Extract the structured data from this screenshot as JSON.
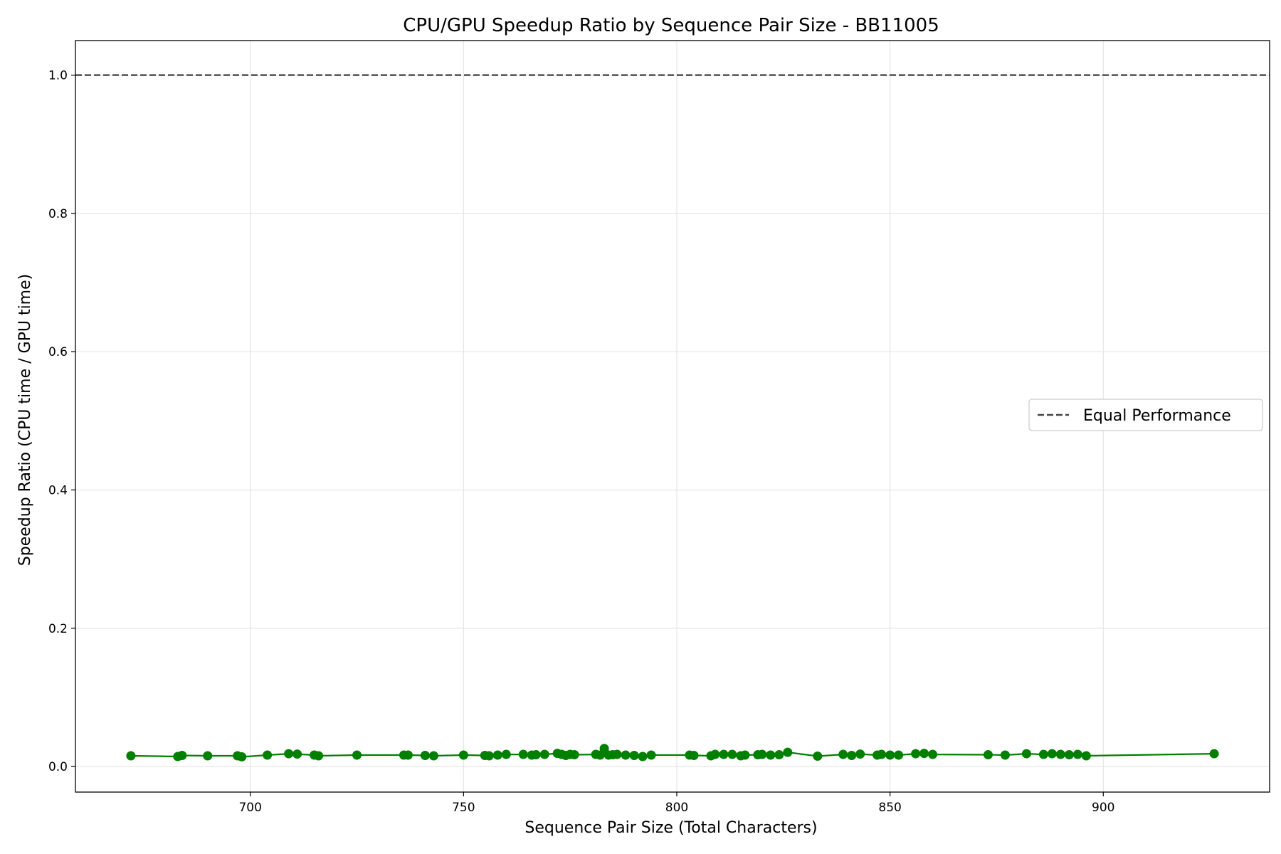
{
  "chart_data": {
    "type": "line",
    "title": "CPU/GPU Speedup Ratio by Sequence Pair Size - BB11005",
    "xlabel": "Sequence Pair Size (Total Characters)",
    "ylabel": "Speedup Ratio (CPU time / GPU time)",
    "xlim": [
      659,
      939
    ],
    "ylim": [
      -0.037,
      1.05
    ],
    "xticks": [
      700,
      750,
      800,
      850,
      900
    ],
    "xtick_labels": [
      "700",
      "750",
      "800",
      "850",
      "900"
    ],
    "yticks": [
      0.0,
      0.2,
      0.4,
      0.6,
      0.8,
      1.0
    ],
    "ytick_labels": [
      "0.0",
      "0.2",
      "0.4",
      "0.6",
      "0.8",
      "1.0"
    ],
    "grid": true,
    "legend": {
      "placement": "center-right",
      "entries": [
        "Equal Performance"
      ]
    },
    "reference_line": {
      "name": "Equal Performance",
      "y": 1.0,
      "style": "dashed",
      "color": "#444444"
    },
    "series": [
      {
        "color": "#007f00",
        "x": [
          672,
          683,
          684,
          690,
          697,
          698,
          704,
          709,
          711,
          715,
          716,
          725,
          736,
          737,
          741,
          743,
          750,
          755,
          756,
          758,
          760,
          764,
          766,
          767,
          769,
          772,
          773,
          774,
          775,
          776,
          781,
          782,
          783,
          784,
          785,
          786,
          788,
          790,
          792,
          794,
          803,
          804,
          808,
          809,
          811,
          813,
          815,
          816,
          819,
          820,
          822,
          824,
          826,
          833,
          839,
          841,
          843,
          847,
          848,
          850,
          852,
          856,
          858,
          860,
          873,
          877,
          882,
          886,
          888,
          890,
          892,
          894,
          896,
          926
        ],
        "y": [
          0.0155,
          0.0145,
          0.016,
          0.0155,
          0.0155,
          0.014,
          0.0165,
          0.0185,
          0.018,
          0.0165,
          0.0155,
          0.0165,
          0.0165,
          0.0165,
          0.016,
          0.0155,
          0.0165,
          0.016,
          0.0155,
          0.0165,
          0.0175,
          0.0175,
          0.0165,
          0.017,
          0.0175,
          0.019,
          0.0175,
          0.016,
          0.0175,
          0.017,
          0.0175,
          0.0165,
          0.026,
          0.0165,
          0.017,
          0.0175,
          0.0165,
          0.016,
          0.0145,
          0.0165,
          0.0165,
          0.016,
          0.0155,
          0.0175,
          0.0175,
          0.0175,
          0.0155,
          0.0165,
          0.017,
          0.0175,
          0.0165,
          0.017,
          0.0205,
          0.015,
          0.0175,
          0.016,
          0.018,
          0.0165,
          0.0175,
          0.0165,
          0.0165,
          0.0185,
          0.019,
          0.0175,
          0.017,
          0.0165,
          0.0185,
          0.0175,
          0.0185,
          0.0175,
          0.017,
          0.0175,
          0.0155,
          0.0185
        ]
      }
    ]
  }
}
